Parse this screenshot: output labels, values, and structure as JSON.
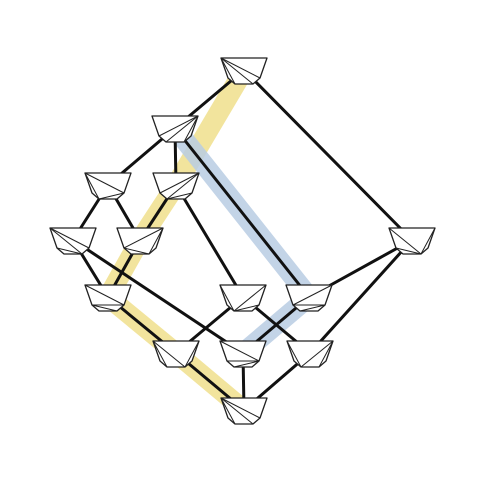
{
  "colors": {
    "background": "#ffffff",
    "edge": "#111111",
    "node_fill": "#ffffff",
    "node_stroke": "#222222",
    "highlight_yellow": "#f0df8c",
    "highlight_blue": "#b9cde3"
  },
  "diagram": {
    "kind": "lattice / Hasse diagram of polygon triangulations",
    "nodes": [
      {
        "id": "top"
      },
      {
        "id": "upper-left"
      },
      {
        "id": "left-a"
      },
      {
        "id": "left-b"
      },
      {
        "id": "far-left"
      },
      {
        "id": "mid-left"
      },
      {
        "id": "right"
      },
      {
        "id": "lower-left"
      },
      {
        "id": "center"
      },
      {
        "id": "center-right"
      },
      {
        "id": "low-left"
      },
      {
        "id": "low-center"
      },
      {
        "id": "low-right"
      },
      {
        "id": "bottom"
      }
    ],
    "edges": [
      [
        "top",
        "upper-left"
      ],
      [
        "top",
        "right"
      ],
      [
        "upper-left",
        "left-a"
      ],
      [
        "upper-left",
        "left-b"
      ],
      [
        "upper-left",
        "center-right"
      ],
      [
        "left-a",
        "far-left"
      ],
      [
        "left-a",
        "mid-left"
      ],
      [
        "left-b",
        "mid-left"
      ],
      [
        "left-b",
        "center"
      ],
      [
        "far-left",
        "lower-left"
      ],
      [
        "far-left",
        "low-center"
      ],
      [
        "mid-left",
        "lower-left"
      ],
      [
        "lower-left",
        "low-left"
      ],
      [
        "center",
        "low-left"
      ],
      [
        "center",
        "low-right"
      ],
      [
        "center-right",
        "low-center"
      ],
      [
        "right",
        "center-right"
      ],
      [
        "right",
        "low-right"
      ],
      [
        "low-left",
        "bottom"
      ],
      [
        "low-center",
        "bottom"
      ],
      [
        "low-right",
        "bottom"
      ]
    ],
    "highlight_paths": [
      {
        "color": "yellow",
        "nodes": [
          "top",
          "left-b",
          "mid-left",
          "lower-left",
          "low-left",
          "bottom"
        ]
      },
      {
        "color": "blue",
        "nodes": [
          "upper-left",
          "center-right",
          "low-center"
        ]
      }
    ]
  }
}
